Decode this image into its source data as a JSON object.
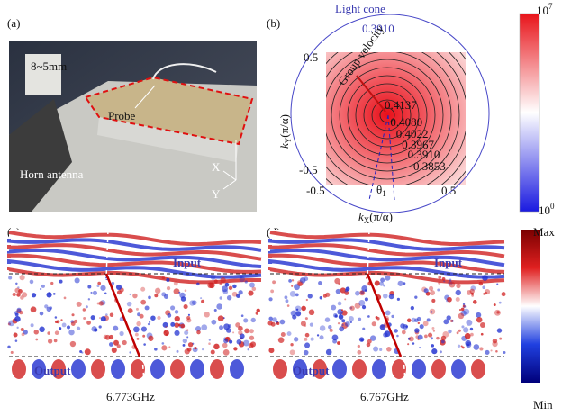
{
  "panels": {
    "a": {
      "label": "(a)",
      "inset_label": "8~5mm",
      "probe": "Probe",
      "antenna": "Horn antenna",
      "axis_x": "X",
      "axis_y": "Y"
    },
    "b": {
      "label": "(b)",
      "light_cone": "Light cone",
      "light_cone_value": "0.3910",
      "y_tick_top": "0.5",
      "y_tick_bottom": "-0.5",
      "x_tick_left": "-0.5",
      "x_tick_right": "0.5",
      "group_velocity": "Group velocity",
      "contours": [
        "0.4137",
        "0.4080",
        "0.4022",
        "0.3967",
        "0.3910",
        "0.3853"
      ],
      "angle": {
        "symbol": "θ",
        "subscript": "1"
      },
      "y_axis": {
        "symbol": "k",
        "subscript": "Y",
        "unit": "(π/α)"
      },
      "x_axis": {
        "symbol": "k",
        "subscript": "X",
        "unit": "(π/α)"
      },
      "colorbar": {
        "max": {
          "base": "10",
          "exponent": "7"
        },
        "min": {
          "base": "10",
          "exponent": "0"
        }
      }
    },
    "c": {
      "label": "(c)",
      "input": "Input",
      "output": "Output",
      "frequency": "6.773GHz"
    },
    "d": {
      "label": "(d)",
      "input": "Input",
      "output": "Output",
      "frequency": "6.767GHz"
    },
    "colorbar": {
      "max": "Max",
      "min": "Min"
    }
  }
}
